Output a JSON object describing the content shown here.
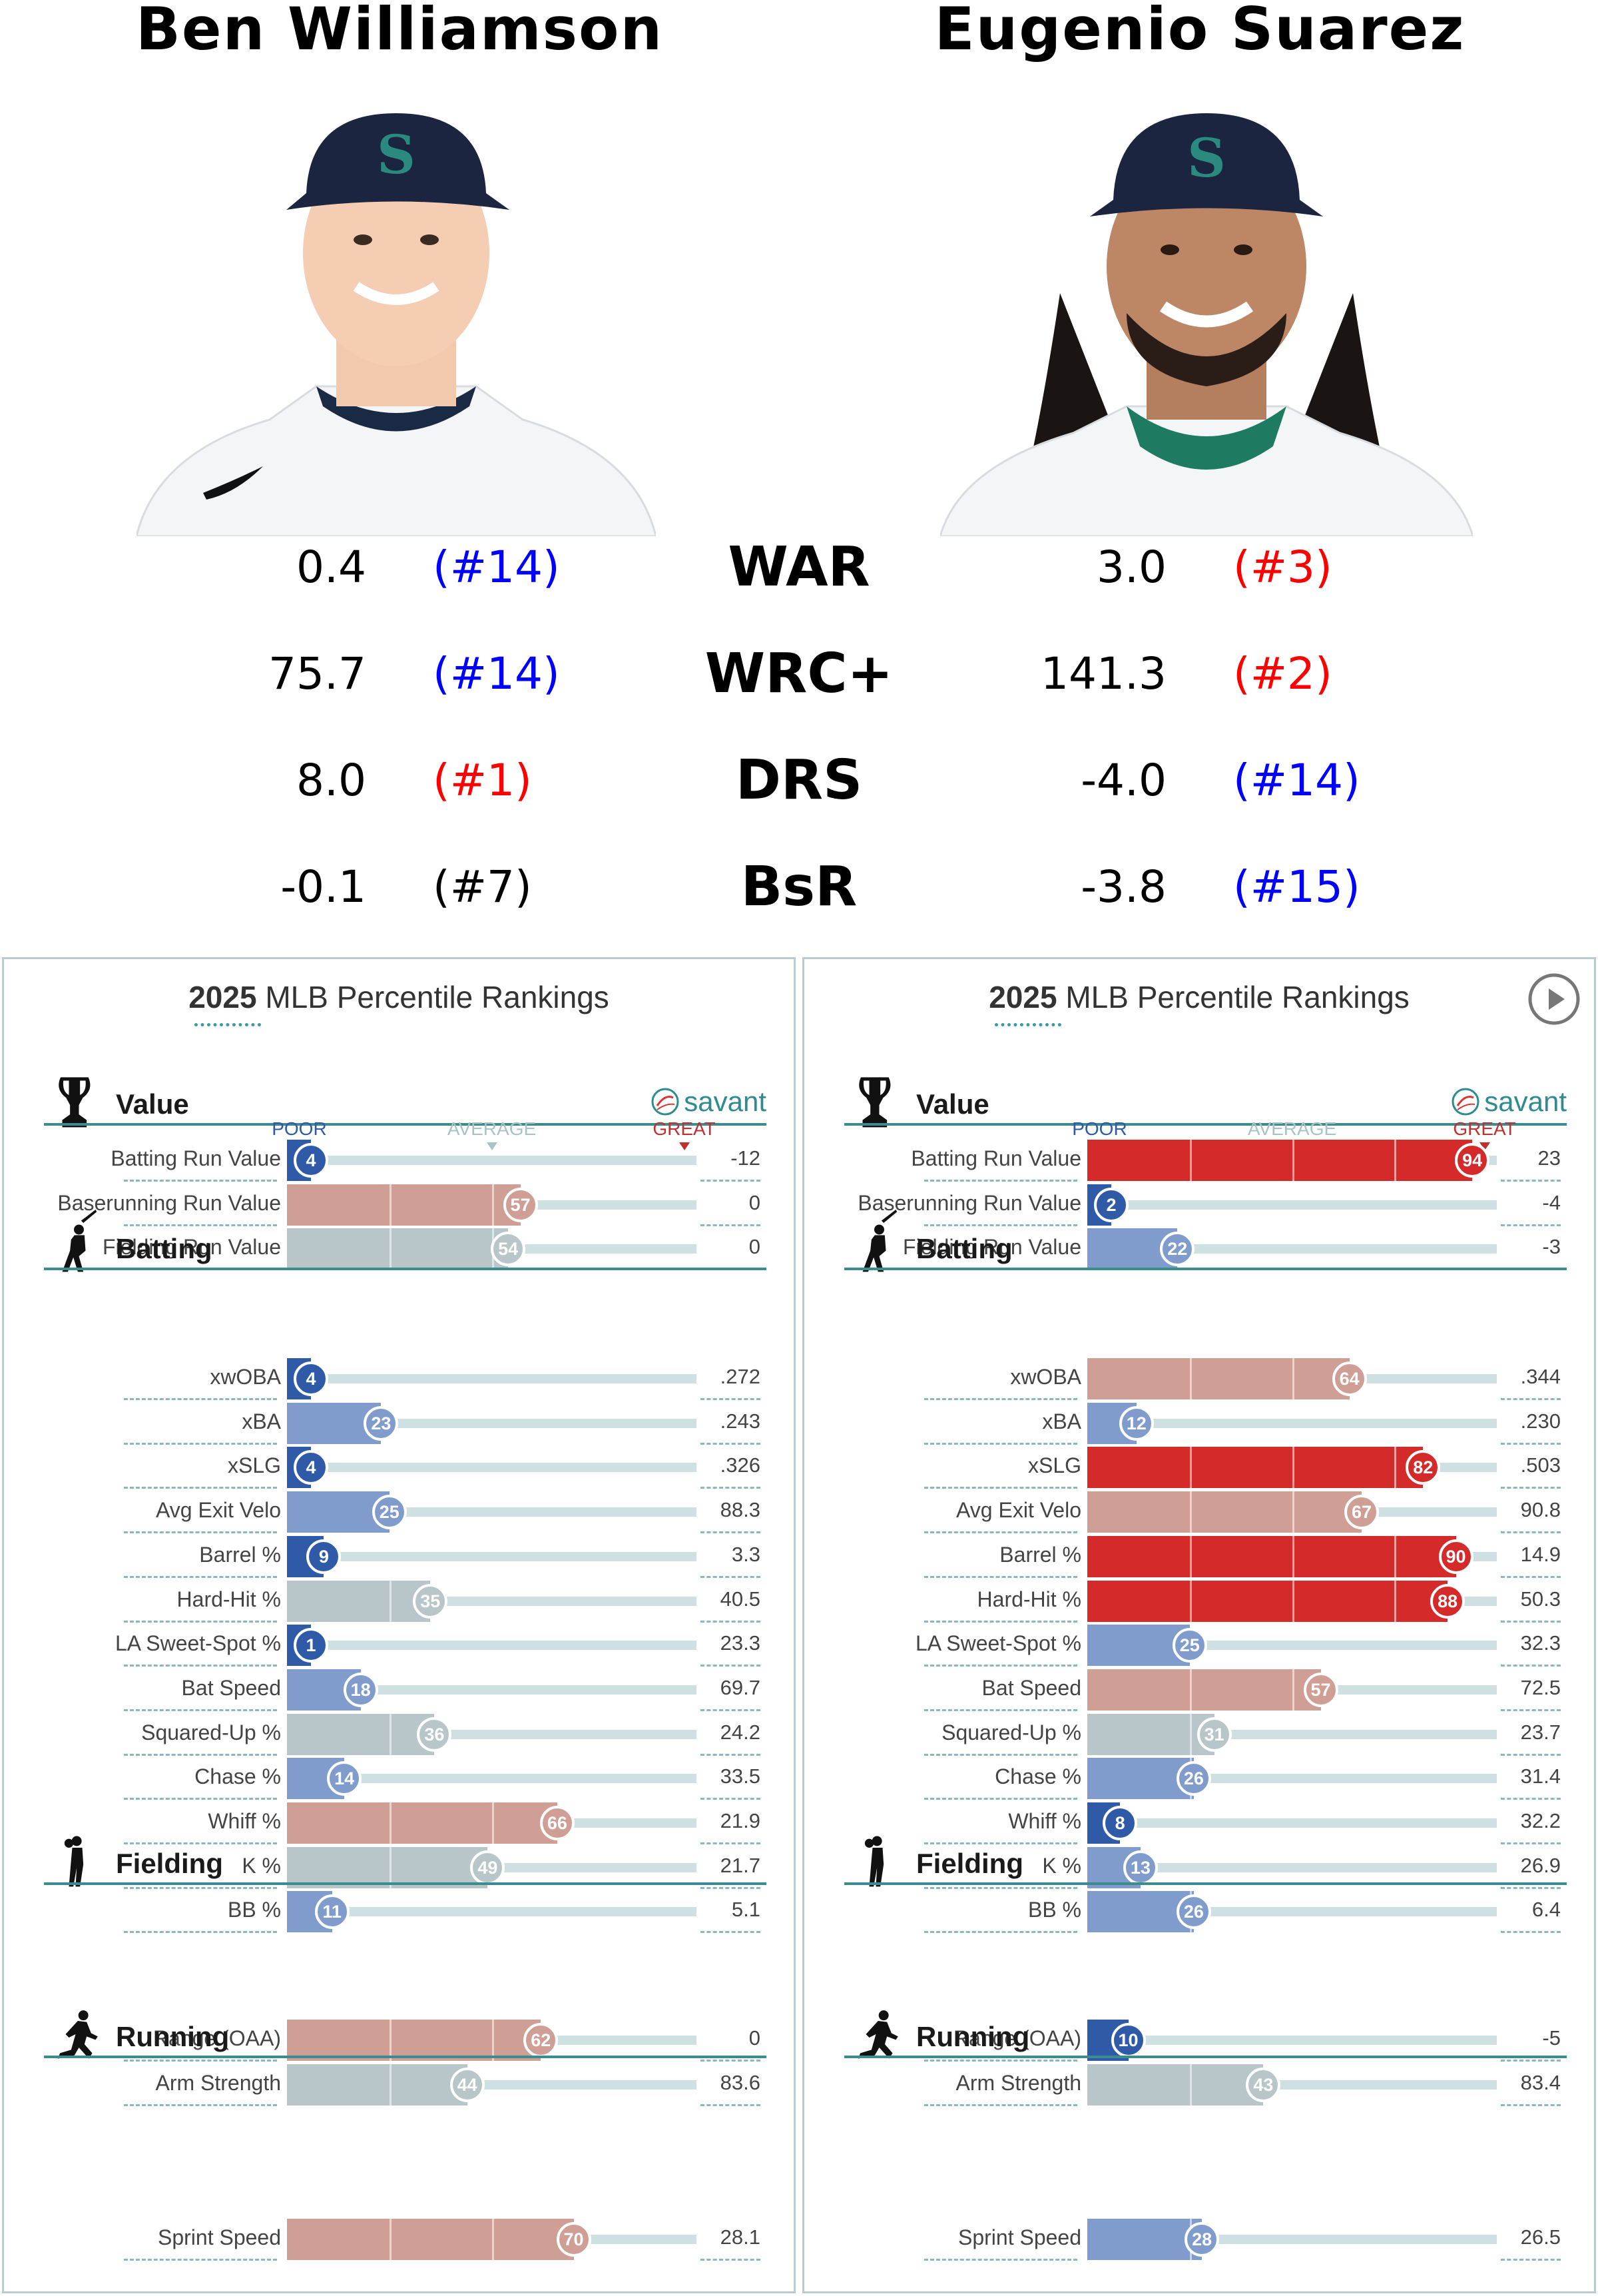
{
  "players": [
    {
      "name": "Ben Williamson",
      "stats": [
        {
          "label": "WAR",
          "value": "0.4",
          "rank": "(#14)",
          "rank_color": "#0000ff"
        },
        {
          "label": "WRC+",
          "value": "75.7",
          "rank": "(#14)",
          "rank_color": "#0000ff"
        },
        {
          "label": "DRS",
          "value": "8.0",
          "rank": "(#1)",
          "rank_color": "#ff0000"
        },
        {
          "label": "BsR",
          "value": "-0.1",
          "rank": "(#7)",
          "rank_color": "#000000"
        }
      ]
    },
    {
      "name": "Eugenio Suarez",
      "stats": [
        {
          "label": "WAR",
          "value": "3.0",
          "rank": "(#3)",
          "rank_color": "#ff0000"
        },
        {
          "label": "WRC+",
          "value": "141.3",
          "rank": "(#2)",
          "rank_color": "#ff0000"
        },
        {
          "label": "DRS",
          "value": "-4.0",
          "rank": "(#14)",
          "rank_color": "#0000ff"
        },
        {
          "label": "BsR",
          "value": "-3.8",
          "rank": "(#15)",
          "rank_color": "#0000ff"
        }
      ]
    }
  ],
  "stat_labels": [
    "WAR",
    "WRC+",
    "DRS",
    "BsR"
  ],
  "panel_title": {
    "year": "2025",
    "rest": "MLB Percentile Rankings"
  },
  "brand": "savant",
  "scale": {
    "poor": "POOR",
    "average": "AVERAGE",
    "great": "GREAT"
  },
  "chart_data": [
    {
      "type": "bar",
      "title": "2025 MLB Percentile Rankings",
      "player": "Ben Williamson",
      "xlim": [
        0,
        100
      ],
      "sections": [
        {
          "name": "Value",
          "rows": [
            {
              "label": "Batting Run Value",
              "percentile": 4,
              "value": "-12"
            },
            {
              "label": "Baserunning Run Value",
              "percentile": 57,
              "value": "0"
            },
            {
              "label": "Fielding Run Value",
              "percentile": 54,
              "value": "0"
            }
          ]
        },
        {
          "name": "Batting",
          "rows": [
            {
              "label": "xwOBA",
              "percentile": 4,
              "value": ".272"
            },
            {
              "label": "xBA",
              "percentile": 23,
              "value": ".243"
            },
            {
              "label": "xSLG",
              "percentile": 4,
              "value": ".326"
            },
            {
              "label": "Avg Exit Velo",
              "percentile": 25,
              "value": "88.3"
            },
            {
              "label": "Barrel %",
              "percentile": 9,
              "value": "3.3"
            },
            {
              "label": "Hard-Hit %",
              "percentile": 35,
              "value": "40.5"
            },
            {
              "label": "LA Sweet-Spot %",
              "percentile": 1,
              "value": "23.3"
            },
            {
              "label": "Bat Speed",
              "percentile": 18,
              "value": "69.7"
            },
            {
              "label": "Squared-Up %",
              "percentile": 36,
              "value": "24.2"
            },
            {
              "label": "Chase %",
              "percentile": 14,
              "value": "33.5"
            },
            {
              "label": "Whiff %",
              "percentile": 66,
              "value": "21.9"
            },
            {
              "label": "K %",
              "percentile": 49,
              "value": "21.7"
            },
            {
              "label": "BB %",
              "percentile": 11,
              "value": "5.1"
            }
          ]
        },
        {
          "name": "Fielding",
          "rows": [
            {
              "label": "Range (OAA)",
              "percentile": 62,
              "value": "0"
            },
            {
              "label": "Arm Strength",
              "percentile": 44,
              "value": "83.6"
            }
          ]
        },
        {
          "name": "Running",
          "rows": [
            {
              "label": "Sprint Speed",
              "percentile": 70,
              "value": "28.1"
            }
          ]
        }
      ]
    },
    {
      "type": "bar",
      "title": "2025 MLB Percentile Rankings",
      "player": "Eugenio Suarez",
      "xlim": [
        0,
        100
      ],
      "sections": [
        {
          "name": "Value",
          "rows": [
            {
              "label": "Batting Run Value",
              "percentile": 94,
              "value": "23"
            },
            {
              "label": "Baserunning Run Value",
              "percentile": 2,
              "value": "-4"
            },
            {
              "label": "Fielding Run Value",
              "percentile": 22,
              "value": "-3"
            }
          ]
        },
        {
          "name": "Batting",
          "rows": [
            {
              "label": "xwOBA",
              "percentile": 64,
              "value": ".344"
            },
            {
              "label": "xBA",
              "percentile": 12,
              "value": ".230"
            },
            {
              "label": "xSLG",
              "percentile": 82,
              "value": ".503"
            },
            {
              "label": "Avg Exit Velo",
              "percentile": 67,
              "value": "90.8"
            },
            {
              "label": "Barrel %",
              "percentile": 90,
              "value": "14.9"
            },
            {
              "label": "Hard-Hit %",
              "percentile": 88,
              "value": "50.3"
            },
            {
              "label": "LA Sweet-Spot %",
              "percentile": 25,
              "value": "32.3"
            },
            {
              "label": "Bat Speed",
              "percentile": 57,
              "value": "72.5"
            },
            {
              "label": "Squared-Up %",
              "percentile": 31,
              "value": "23.7"
            },
            {
              "label": "Chase %",
              "percentile": 26,
              "value": "31.4"
            },
            {
              "label": "Whiff %",
              "percentile": 8,
              "value": "32.2"
            },
            {
              "label": "K %",
              "percentile": 13,
              "value": "26.9"
            },
            {
              "label": "BB %",
              "percentile": 26,
              "value": "6.4"
            }
          ]
        },
        {
          "name": "Fielding",
          "rows": [
            {
              "label": "Range (OAA)",
              "percentile": 10,
              "value": "-5"
            },
            {
              "label": "Arm Strength",
              "percentile": 43,
              "value": "83.4"
            }
          ]
        },
        {
          "name": "Running",
          "rows": [
            {
              "label": "Sprint Speed",
              "percentile": 28,
              "value": "26.5"
            }
          ]
        }
      ]
    }
  ],
  "colors": {
    "poor": "#2f5aa8",
    "below": "#7f9ccc",
    "average": "#b8c6c9",
    "above": "#cf9f95",
    "great": "#d42a2a",
    "scale_poor": "#2f5aa8",
    "scale_average": "#a6c4c6",
    "scale_great": "#c0302e",
    "section_line": "#3b8b8f"
  },
  "icons": [
    "trophy-icon",
    "batter-icon",
    "fielder-icon",
    "runner-icon",
    "savant-icon",
    "play-icon"
  ]
}
